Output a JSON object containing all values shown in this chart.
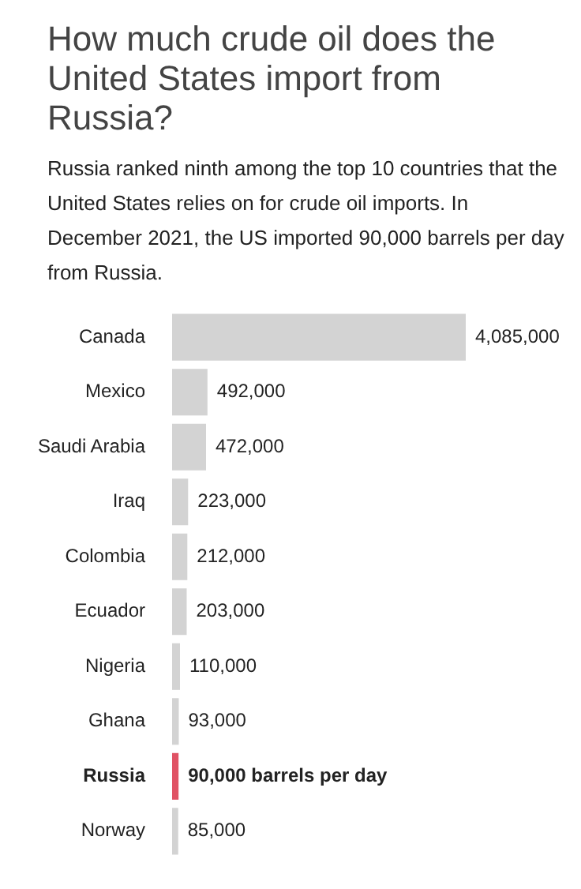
{
  "chart_data": {
    "type": "bar",
    "orientation": "horizontal",
    "title": "How much crude oil does the United States import from Russia?",
    "subtitle": "Russia ranked ninth among the top 10 countries that the United States relies on for crude oil imports. In December 2021, the US imported 90,000 barrels per day from Russia.",
    "categories": [
      "Canada",
      "Mexico",
      "Saudi Arabia",
      "Iraq",
      "Colombia",
      "Ecuador",
      "Nigeria",
      "Ghana",
      "Russia",
      "Norway"
    ],
    "values": [
      4085000,
      492000,
      472000,
      223000,
      212000,
      203000,
      110000,
      93000,
      90000,
      85000
    ],
    "colors": [
      "#d3d3d3",
      "#d3d3d3",
      "#d3d3d3",
      "#d3d3d3",
      "#d3d3d3",
      "#d3d3d3",
      "#d3d3d3",
      "#d3d3d3",
      "#e05264",
      "#d3d3d3"
    ],
    "value_labels": [
      "4,085,000",
      "492,000",
      "472,000",
      "223,000",
      "212,000",
      "203,000",
      "110,000",
      "93,000",
      "90,000 barrels per day",
      "85,000"
    ],
    "legend": false
  }
}
